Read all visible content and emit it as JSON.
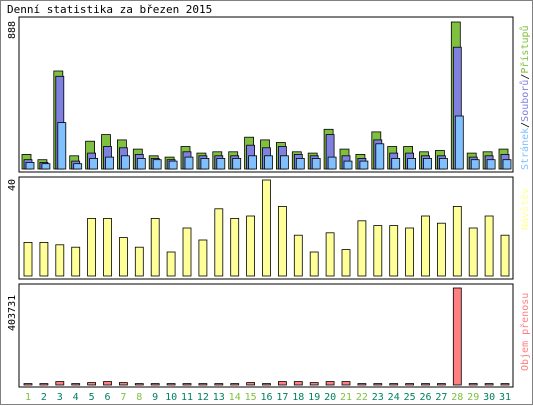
{
  "chart_data": {
    "type": "bar",
    "title": "Denní statistika za březen 2015",
    "x": {
      "categories": [
        "1",
        "2",
        "3",
        "4",
        "5",
        "6",
        "7",
        "8",
        "9",
        "10",
        "11",
        "12",
        "13",
        "14",
        "15",
        "16",
        "17",
        "18",
        "19",
        "20",
        "21",
        "22",
        "23",
        "24",
        "25",
        "26",
        "27",
        "28",
        "29",
        "30",
        "31"
      ],
      "weekend": [
        true,
        false,
        false,
        false,
        false,
        false,
        true,
        true,
        false,
        false,
        false,
        false,
        false,
        true,
        true,
        false,
        false,
        false,
        false,
        false,
        true,
        true,
        false,
        false,
        false,
        false,
        false,
        true,
        true,
        false,
        false
      ]
    },
    "panels": [
      {
        "ymax_label": "888",
        "ylim": [
          0,
          888
        ],
        "series": [
          {
            "name": "Přístupů",
            "color": "#80c040",
            "values": [
              88,
              56,
              592,
              80,
              168,
              208,
              176,
              120,
              80,
              72,
              136,
              96,
              104,
              104,
              192,
              176,
              160,
              104,
              96,
              240,
              120,
              88,
              224,
              136,
              136,
              104,
              112,
              888,
              96,
              104,
              120
            ]
          },
          {
            "name": "Souborů",
            "color": "#8080e0",
            "values": [
              56,
              40,
              560,
              48,
              96,
              136,
              128,
              88,
              64,
              56,
              104,
              80,
              80,
              80,
              144,
              128,
              136,
              88,
              80,
              208,
              80,
              64,
              176,
              96,
              96,
              80,
              80,
              736,
              72,
              80,
              88
            ]
          },
          {
            "name": "Stránek",
            "color": "#80c0ff",
            "values": [
              40,
              32,
              280,
              32,
              64,
              72,
              80,
              64,
              56,
              48,
              72,
              64,
              64,
              64,
              80,
              80,
              80,
              64,
              64,
              72,
              48,
              48,
              152,
              64,
              64,
              64,
              64,
              320,
              56,
              56,
              56
            ]
          }
        ],
        "side_labels": [
          "Stránek",
          "Souborů",
          "Přístupů"
        ]
      },
      {
        "ymax_label": "40",
        "ylim": [
          0,
          40
        ],
        "series": [
          {
            "name": "Návštěv",
            "color": "#ffff99",
            "values": [
              14,
              14,
              13,
              12,
              24,
              24,
              16,
              12,
              24,
              10,
              20,
              15,
              28,
              24,
              25,
              40,
              29,
              17,
              10,
              18,
              11,
              23,
              21,
              21,
              20,
              25,
              22,
              29,
              20,
              25,
              17
            ]
          }
        ],
        "side_labels": [
          "Návštěv"
        ]
      },
      {
        "ymax_label": "403731",
        "ylim": [
          0,
          403731
        ],
        "series": [
          {
            "name": "Objem přenosu",
            "color": "#ff8080",
            "values": [
              6000,
              6000,
              14000,
              6000,
              10000,
              14000,
              10000,
              6000,
              6000,
              6000,
              6000,
              6000,
              6000,
              6000,
              10000,
              6000,
              14000,
              14000,
              10000,
              14000,
              14000,
              6000,
              6000,
              6000,
              6000,
              6000,
              6000,
              403731,
              6000,
              6000,
              6000
            ]
          }
        ],
        "side_labels": [
          "Objem přenosu"
        ]
      }
    ],
    "colors": {
      "weekday_label": "#00805a",
      "weekend_label": "#80c040",
      "slash": "#000000"
    }
  }
}
